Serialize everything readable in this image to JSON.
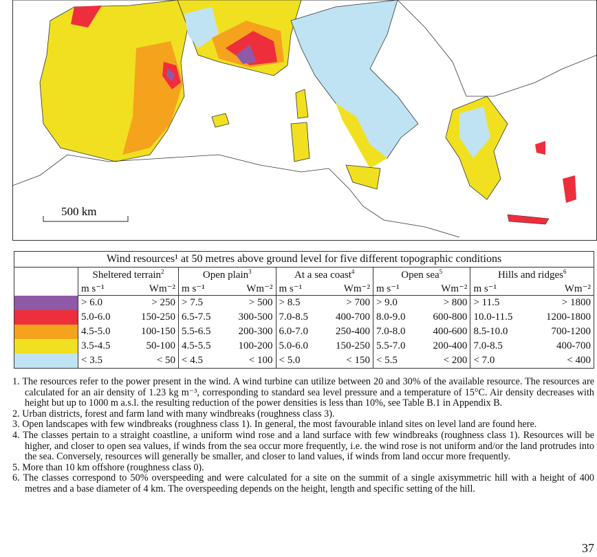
{
  "map": {
    "scale_label": "500 km",
    "legend_colors": [
      "#8e5aa8",
      "#ee2e3c",
      "#f5a21d",
      "#f0e020",
      "#bfe3f3"
    ]
  },
  "table": {
    "title": "Wind resources¹ at 50 metres above ground level for five different topographic conditions",
    "groups": [
      {
        "name": "Sheltered terrain",
        "note": "2",
        "unit1": "m s⁻¹",
        "unit2": "Wm⁻²"
      },
      {
        "name": "Open plain",
        "note": "3",
        "unit1": "m s⁻¹",
        "unit2": "Wm⁻²"
      },
      {
        "name": "At a sea coast",
        "note": "4",
        "unit1": "m s⁻¹",
        "unit2": "Wm⁻²"
      },
      {
        "name": "Open sea",
        "note": "5",
        "unit1": "m s⁻¹",
        "unit2": "Wm⁻²"
      },
      {
        "name": "Hills and ridges",
        "note": "6",
        "unit1": "m s⁻¹",
        "unit2": "Wm⁻²"
      }
    ],
    "rows": [
      {
        "color": "#8e5aa8",
        "cells": [
          "> 6.0",
          "> 250",
          "> 7.5",
          "> 500",
          "> 8.5",
          "> 700",
          "> 9.0",
          "> 800",
          "> 11.5",
          "> 1800"
        ]
      },
      {
        "color": "#ee2e3c",
        "cells": [
          "5.0-6.0",
          "150-250",
          "6.5-7.5",
          "300-500",
          "7.0-8.5",
          "400-700",
          "8.0-9.0",
          "600-800",
          "10.0-11.5",
          "1200-1800"
        ]
      },
      {
        "color": "#f5a21d",
        "cells": [
          "4.5-5.0",
          "100-150",
          "5.5-6.5",
          "200-300",
          "6.0-7.0",
          "250-400",
          "7.0-8.0",
          "400-600",
          "8.5-10.0",
          "700-1200"
        ]
      },
      {
        "color": "#f0e020",
        "cells": [
          "3.5-4.5",
          "50-100",
          "4.5-5.5",
          "100-200",
          "5.0-6.0",
          "150-250",
          "5.5-7.0",
          "200-400",
          "7.0-8.5",
          "400-700"
        ]
      },
      {
        "color": "#bfe3f3",
        "cells": [
          "< 3.5",
          "< 50",
          "< 4.5",
          "< 100",
          "< 5.0",
          "< 150",
          "< 5.5",
          "< 200",
          "< 7.0",
          "< 400"
        ]
      }
    ]
  },
  "notes": [
    "1. The resources refer to the power present in the wind. A wind turbine can utilize between 20 and 30% of the available resource. The resources are calculated for an air density of 1.23 kg m⁻³, corresponding to standard sea level pressure and a temperature of 15°C. Air density decreases with height but up to 1000 m a.s.l. the resulting reduction of the power densities is less than 10%, see Table B.1 in Appendix B.",
    "2. Urban districts, forest and farm land with many windbreaks (roughness class 3).",
    "3. Open landscapes with few windbreaks (roughness class 1). In general, the most favourable inland sites on level land are found here.",
    "4. The classes pertain to a straight coastline, a uniform wind rose and a land surface with few windbreaks (roughness class 1). Resources will be higher, and closer to open sea values, if winds from the sea occur more frequently, i.e. the wind rose is not uniform and/or the land protrudes into the sea. Conversely, resources will generally be smaller, and closer to land values, if winds from land occur more frequently.",
    "5. More than 10 km offshore (roughness class 0).",
    "6. The classes correspond to 50% overspeeding and were calculated for a site on the summit of a single axisymmetric hill with a height of 400 metres and a base diameter of 4 km. The overspeeding depends on the height, length and specific setting of the hill."
  ],
  "page_number": "37"
}
